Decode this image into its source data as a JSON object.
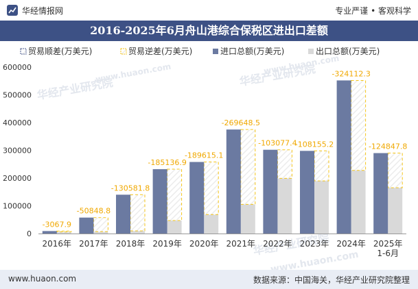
{
  "header": {
    "brand": "华经情报网",
    "tagline": "专业严谨 • 客观科学"
  },
  "footer": {
    "website": "www.huaon.com",
    "source": "数据来源：中国海关，华经产业研究院整理"
  },
  "colors": {
    "header_bg": "#3d5185",
    "import_bar": "#6b7aa1",
    "export_bar": "#d9d9d9",
    "surplus_border": "#4a5a8c",
    "deficit_border": "#f5c518",
    "label": "#f0a800"
  },
  "chart_data": {
    "type": "bar",
    "title": "2016-2025年6月舟山港综合保税区进出口差额",
    "categories": [
      "2016年",
      "2017年",
      "2018年",
      "2019年",
      "2020年",
      "2021年",
      "2022年",
      "2023年",
      "2024年",
      "2025年\n1-6月"
    ],
    "ylim": [
      0,
      600000
    ],
    "yticks": [
      0,
      100000,
      200000,
      300000,
      400000,
      500000,
      600000
    ],
    "legend_position": "top",
    "series": [
      {
        "name": "贸易顺差(万美元)",
        "values": [
          null,
          null,
          null,
          null,
          null,
          null,
          null,
          null,
          null,
          null
        ]
      },
      {
        "name": "贸易逆差(万美元)",
        "values": [
          -3067.9,
          -50848.8,
          -130581.8,
          -185136.9,
          -189615.1,
          -269648.5,
          -103077.4,
          -108155.2,
          -324112.3,
          -124847.8
        ]
      },
      {
        "name": "进口总额(万美元)",
        "values": [
          8900,
          57500,
          140000,
          232000,
          258000,
          375000,
          302000,
          298000,
          552000,
          290000
        ]
      },
      {
        "name": "出口总额(万美元)",
        "values": [
          5832,
          6651,
          9418,
          46863,
          68385,
          105352,
          198923,
          189845,
          227888,
          165152
        ]
      }
    ],
    "data_labels": [
      "-3067.9",
      "-50848.8",
      "-130581.8",
      "-185136.9",
      "-189615.1",
      "-269648.5",
      "-103077.4",
      "-108155.2",
      "-324112.3",
      "-124847.8"
    ],
    "watermarks": [
      "华经产业研究院",
      "www.huaon.com"
    ]
  }
}
